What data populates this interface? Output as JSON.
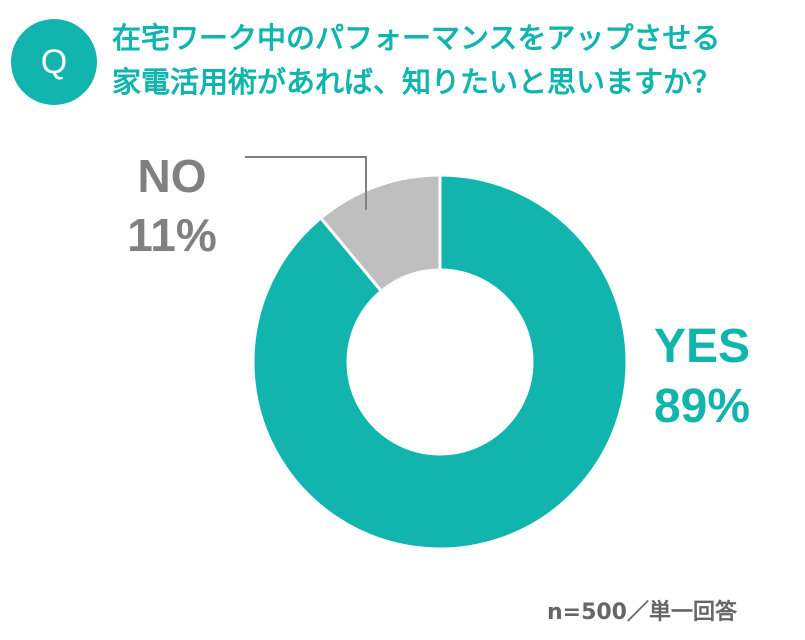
{
  "question": {
    "badge": "Q",
    "line1": "在宅ワーク中のパフォーマンスをアップさせる",
    "line2": "家電活用術があれば、知りたいと思いますか？"
  },
  "chart_data": {
    "type": "pie",
    "slices": [
      {
        "name": "YES",
        "value": 89,
        "label": "89%",
        "color": "#12b5ad"
      },
      {
        "name": "NO",
        "value": 11,
        "label": "11%",
        "color": "#bfbfbf"
      }
    ],
    "donut": true,
    "legend": "none"
  },
  "footnote": "n=500／単一回答",
  "colors": {
    "accent": "#12b5ad",
    "no_label": "#808080"
  }
}
